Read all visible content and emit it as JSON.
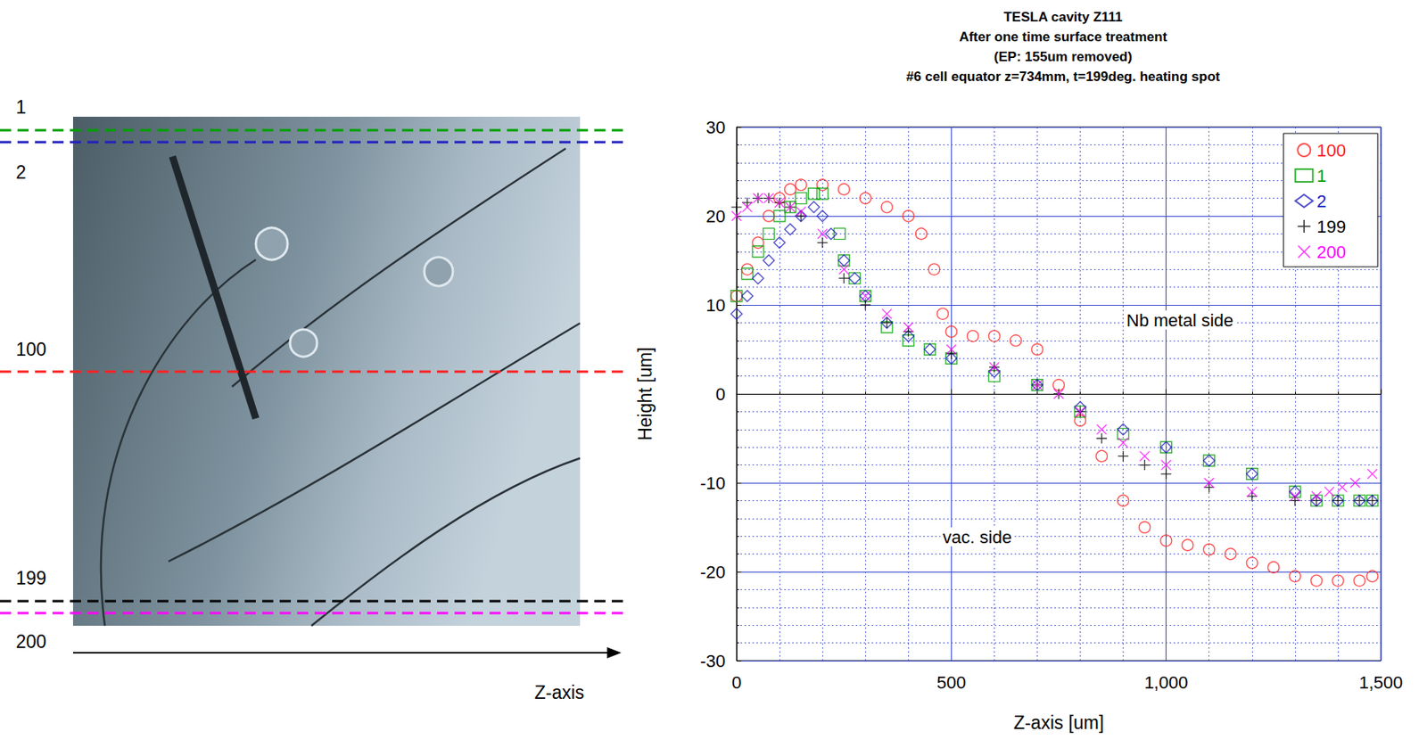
{
  "chart_data": {
    "type": "scatter",
    "title": "TESLA cavity Z111\nAfter one time surface treatment\n(EP: 155um removed)\n#6 cell equator z=734mm, t=199deg. heating spot",
    "x_label": "Z-axis [um]",
    "y_label": "Height [um]",
    "xlim": [
      0,
      1500
    ],
    "xticks": [
      0,
      500,
      1000,
      1500
    ],
    "ylim": [
      -30,
      30
    ],
    "yticks": [
      -30,
      -20,
      -10,
      0,
      10,
      20,
      30
    ],
    "grid": true,
    "legend": "top-right",
    "annotations": [
      {
        "text": "Nb metal side"
      },
      {
        "text": "vac. side"
      }
    ],
    "photo_lines": [
      {
        "label": "1",
        "color": "#00a000"
      },
      {
        "label": "2",
        "color": "#2020c0"
      },
      {
        "label": "100",
        "color": "#ff2020"
      },
      {
        "label": "199",
        "color": "#000000"
      },
      {
        "label": "200",
        "color": "#ff00ff"
      }
    ],
    "photo_axis_label": "Z-axis",
    "series": [
      {
        "name": "100",
        "color": "#ff2020",
        "marker": "circle",
        "x": [
          0,
          25,
          50,
          75,
          100,
          125,
          150,
          200,
          250,
          300,
          350,
          400,
          430,
          460,
          480,
          500,
          550,
          600,
          650,
          700,
          750,
          800,
          850,
          900,
          950,
          1000,
          1050,
          1100,
          1150,
          1200,
          1250,
          1300,
          1350,
          1400,
          1450,
          1480
        ],
        "values": [
          11,
          14,
          17,
          20,
          22,
          23,
          23.5,
          23.5,
          23,
          22,
          21,
          20,
          18,
          14,
          9,
          7,
          6.5,
          6.5,
          6,
          5,
          1,
          -3,
          -7,
          -12,
          -15,
          -16.5,
          -17,
          -17.5,
          -18,
          -19,
          -19.5,
          -20.5,
          -21,
          -21,
          -21,
          -20.5
        ]
      },
      {
        "name": "1",
        "color": "#00a000",
        "marker": "square",
        "x": [
          0,
          25,
          50,
          75,
          100,
          125,
          150,
          180,
          200,
          240,
          250,
          275,
          300,
          350,
          400,
          450,
          500,
          600,
          700,
          800,
          900,
          1000,
          1100,
          1200,
          1300,
          1350,
          1400,
          1450,
          1480
        ],
        "values": [
          11,
          13.5,
          16,
          18,
          20,
          21,
          22,
          22.5,
          22.5,
          18,
          15,
          13,
          11,
          7.5,
          6,
          5,
          4,
          2,
          1,
          -2,
          -4.5,
          -6,
          -7.5,
          -9,
          -11,
          -12,
          -12,
          -12,
          -12
        ]
      },
      {
        "name": "2",
        "color": "#2020c0",
        "marker": "diamond",
        "x": [
          0,
          25,
          50,
          75,
          100,
          125,
          150,
          180,
          200,
          220,
          250,
          275,
          300,
          350,
          400,
          450,
          500,
          600,
          700,
          800,
          900,
          1000,
          1100,
          1200,
          1300,
          1350,
          1400,
          1450,
          1480
        ],
        "values": [
          9,
          11,
          13,
          15,
          17,
          18.5,
          20,
          21,
          20,
          18,
          15,
          13,
          11,
          8,
          6.5,
          5,
          4,
          2.5,
          1,
          -1.5,
          -4,
          -6,
          -7.5,
          -9,
          -11,
          -12,
          -12,
          -12,
          -12
        ]
      },
      {
        "name": "199",
        "color": "#000000",
        "marker": "plus",
        "x": [
          0,
          25,
          50,
          75,
          100,
          125,
          150,
          200,
          250,
          300,
          350,
          400,
          500,
          600,
          700,
          750,
          800,
          850,
          900,
          950,
          1000,
          1100,
          1200,
          1300,
          1350,
          1400,
          1450,
          1480
        ],
        "values": [
          21,
          21.5,
          22,
          22,
          21.5,
          21,
          20,
          17,
          13,
          10,
          8,
          7,
          4.5,
          3,
          1,
          0,
          -2,
          -5,
          -7,
          -8,
          -9,
          -10.5,
          -11.5,
          -12,
          -12,
          -12,
          -12,
          -12
        ]
      },
      {
        "name": "200",
        "color": "#ff00ff",
        "marker": "x",
        "x": [
          0,
          25,
          50,
          75,
          100,
          125,
          150,
          200,
          250,
          300,
          350,
          400,
          500,
          600,
          700,
          750,
          800,
          850,
          900,
          950,
          1000,
          1100,
          1200,
          1300,
          1350,
          1380,
          1410,
          1440,
          1480
        ],
        "values": [
          20,
          21,
          22,
          22,
          21.5,
          21,
          20.5,
          18,
          14,
          11,
          9,
          7.5,
          5,
          3,
          1,
          0,
          -2,
          -4,
          -5.5,
          -7,
          -8,
          -10,
          -11,
          -11.5,
          -11.5,
          -11,
          -10.5,
          -10,
          -9
        ]
      }
    ]
  }
}
